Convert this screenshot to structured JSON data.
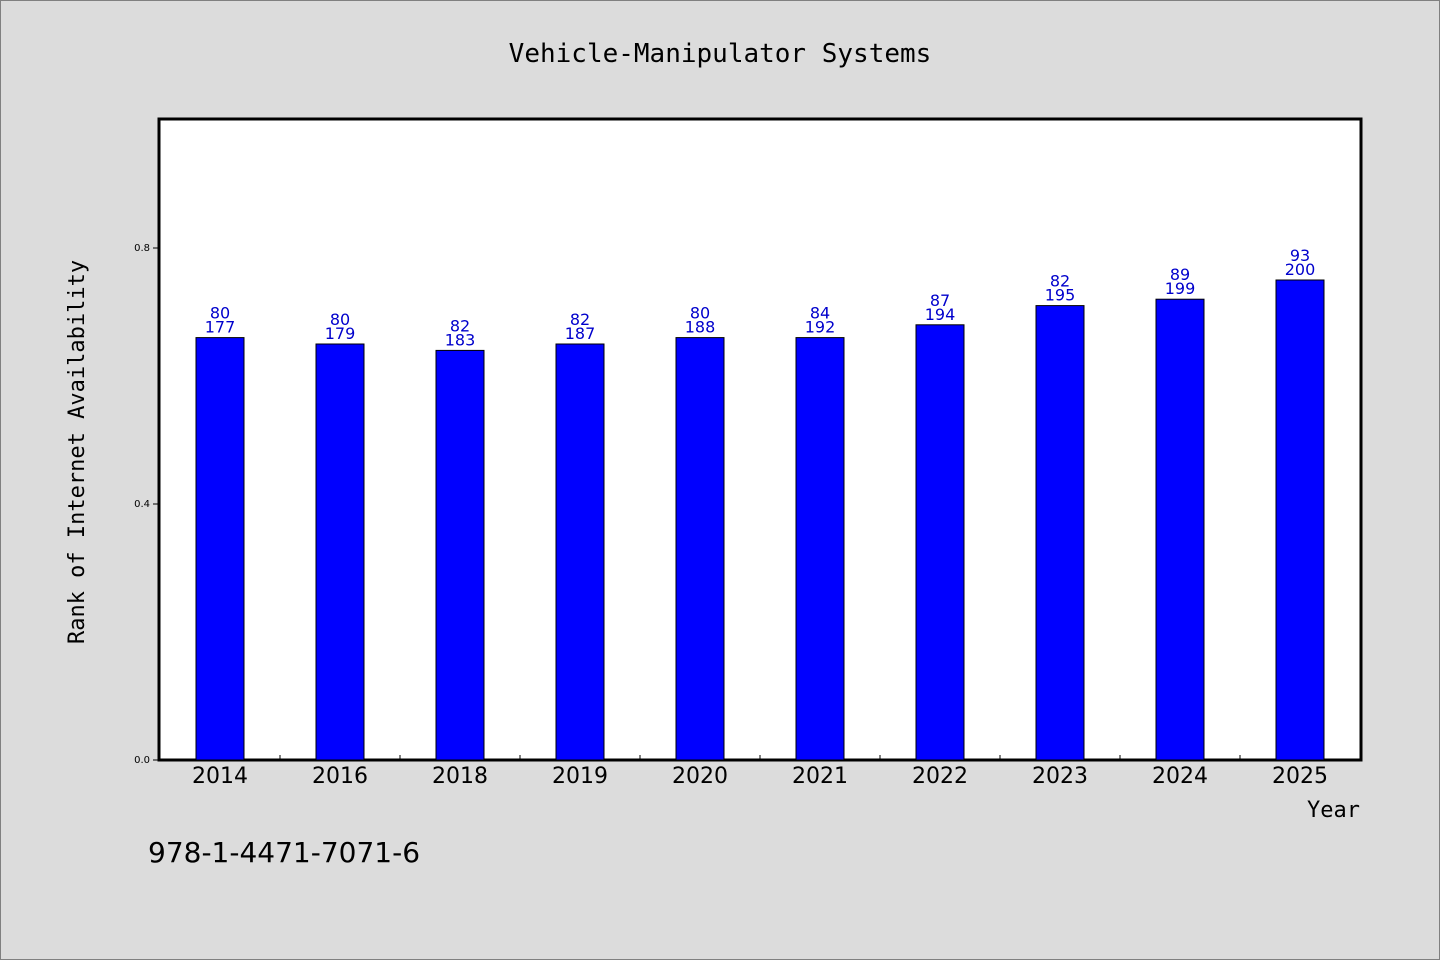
{
  "chart_data": {
    "type": "bar",
    "title": "Vehicle-Manipulator Systems",
    "xlabel": "Year",
    "ylabel": "Rank of Internet Availability",
    "categories": [
      "2014",
      "2016",
      "2018",
      "2019",
      "2020",
      "2021",
      "2022",
      "2023",
      "2024",
      "2025"
    ],
    "values": [
      0.66,
      0.65,
      0.64,
      0.65,
      0.66,
      0.66,
      0.68,
      0.71,
      0.72,
      0.75
    ],
    "labels_top": [
      "80",
      "80",
      "82",
      "82",
      "80",
      "84",
      "87",
      "82",
      "89",
      "93"
    ],
    "labels_bottom": [
      "177",
      "179",
      "183",
      "187",
      "188",
      "192",
      "194",
      "195",
      "199",
      "200"
    ],
    "yticks": [
      "0.0",
      "0.4",
      "0.8"
    ],
    "ylim": [
      0,
      1.0
    ],
    "grid": false,
    "bar_color": "#0000ff",
    "label_color": "#0000cc"
  },
  "footer": {
    "code": "978-1-4471-7071-6"
  }
}
